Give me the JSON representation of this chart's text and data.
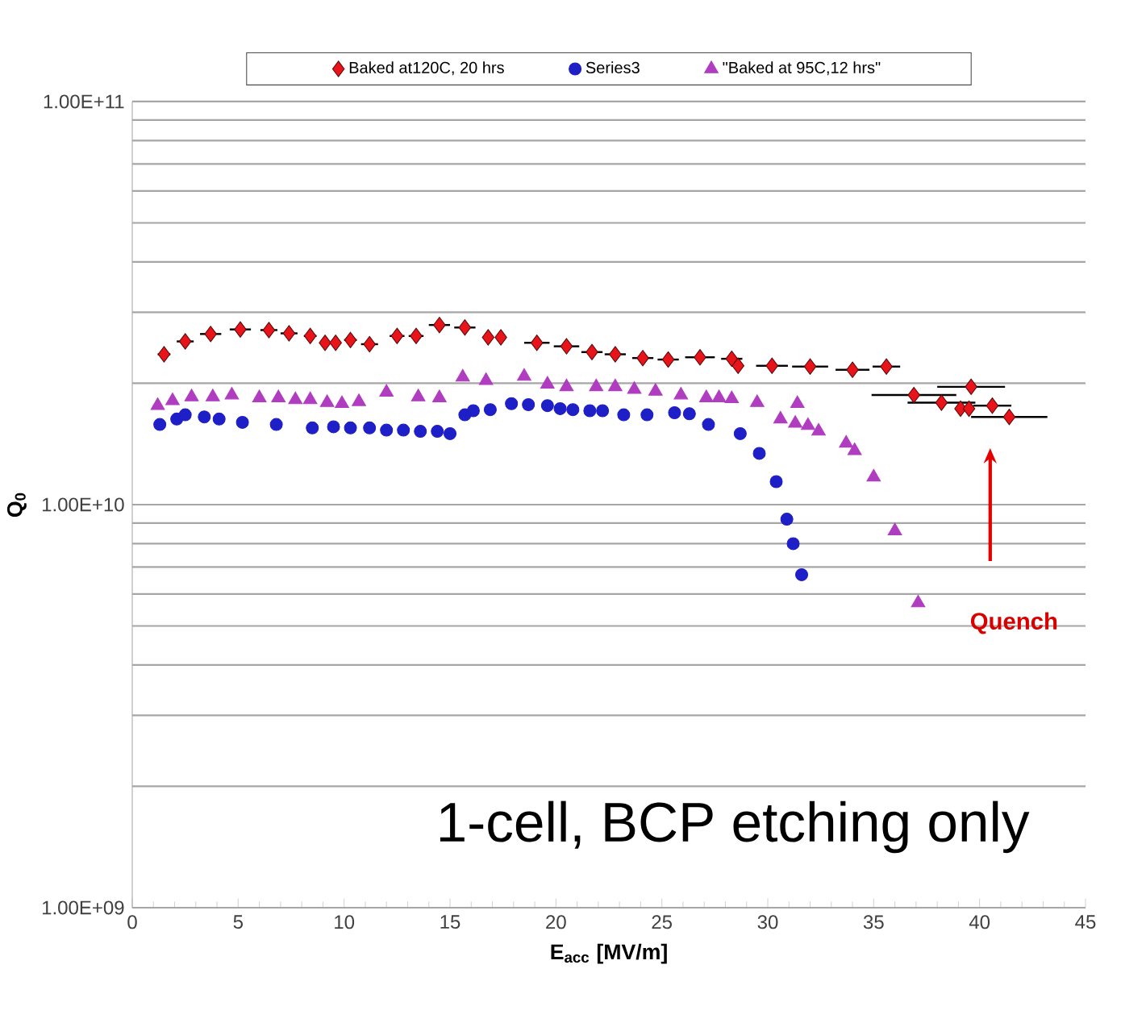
{
  "chart_data": {
    "type": "scatter",
    "xlabel": "E$_{acc}$ [MV/m]",
    "ylabel": "Q$_{0}$",
    "log": "y",
    "grid": "y",
    "legend": "top",
    "xlim": [
      0,
      45
    ],
    "xticks": [
      0,
      5,
      10,
      15,
      20,
      25,
      30,
      35,
      40,
      45
    ],
    "ylim": [
      1000000000.0,
      100000000000.0
    ],
    "yticks": [
      {
        "value": 1000000000.0,
        "label": "1.00E+09"
      },
      {
        "value": 10000000000.0,
        "label": "1.00E+10"
      },
      {
        "value": 100000000000.0,
        "label": "1.00E+11"
      }
    ],
    "annotations": [
      "1-cell, BCP etching only",
      "Quench"
    ],
    "series": [
      {
        "name": "Baked at120C, 20 hrs",
        "color": "#e8141a",
        "marker": "diamond",
        "x": [
          1.5,
          2.5,
          3.7,
          5.1,
          6.45,
          7.4,
          8.4,
          9.1,
          9.6,
          10.3,
          11.2,
          12.5,
          13.4,
          14.5,
          15.7,
          16.8,
          17.4,
          19.1,
          20.5,
          21.7,
          22.8,
          24.1,
          25.3,
          26.8,
          28.3,
          28.6,
          30.2,
          32.0,
          34.0,
          35.6,
          36.9,
          38.2,
          39.1,
          39.5,
          39.6,
          40.6,
          41.4
        ],
        "values": [
          23600000000.0,
          25400000000.0,
          26500000000.0,
          27200000000.0,
          27100000000.0,
          26600000000.0,
          26200000000.0,
          25200000000.0,
          25200000000.0,
          25600000000.0,
          25000000000.0,
          26200000000.0,
          26200000000.0,
          27900000000.0,
          27500000000.0,
          26000000000.0,
          26000000000.0,
          25200000000.0,
          24700000000.0,
          23900000000.0,
          23600000000.0,
          23100000000.0,
          22900000000.0,
          23200000000.0,
          23000000000.0,
          22100000000.0,
          22100000000.0,
          22000000000.0,
          21600000000.0,
          22000000000.0,
          18700000000.0,
          17900000000.0,
          17300000000.0,
          17300000000.0,
          19600000000.0,
          17600000000.0,
          16500000000.0
        ],
        "xerrors": [
          0.3,
          0.4,
          0.5,
          0.5,
          0.4,
          0.4,
          0.3,
          0.15,
          0.15,
          0.3,
          0.4,
          0.35,
          0.35,
          0.5,
          0.5,
          null,
          null,
          0.6,
          0.6,
          0.5,
          0.5,
          0.5,
          0.5,
          0.7,
          0.5,
          0.25,
          0.75,
          0.85,
          0.8,
          0.65,
          2.0,
          1.6,
          0.15,
          0.15,
          1.6,
          0.9,
          1.8
        ]
      },
      {
        "name": "Series3",
        "color": "#1f1fc8",
        "marker": "circle",
        "x": [
          1.3,
          2.1,
          2.5,
          3.4,
          4.1,
          5.2,
          6.8,
          8.5,
          9.5,
          10.3,
          11.2,
          12.0,
          12.8,
          13.6,
          14.4,
          15.0,
          15.7,
          16.1,
          16.9,
          17.9,
          18.7,
          19.6,
          20.2,
          20.8,
          21.6,
          22.2,
          23.2,
          24.3,
          25.6,
          26.3,
          27.2,
          28.7,
          29.6,
          30.4,
          30.9,
          31.2,
          31.6
        ],
        "values": [
          15800000000.0,
          16300000000.0,
          16700000000.0,
          16500000000.0,
          16300000000.0,
          16000000000.0,
          15800000000.0,
          15500000000.0,
          15600000000.0,
          15500000000.0,
          15500000000.0,
          15300000000.0,
          15300000000.0,
          15200000000.0,
          15200000000.0,
          15000000000.0,
          16700000000.0,
          17100000000.0,
          17200000000.0,
          17800000000.0,
          17700000000.0,
          17600000000.0,
          17300000000.0,
          17200000000.0,
          17100000000.0,
          17100000000.0,
          16700000000.0,
          16700000000.0,
          16900000000.0,
          16800000000.0,
          15800000000.0,
          15000000000.0,
          13400000000.0,
          11400000000.0,
          9200000000.0,
          8000000000.0,
          6700000000.0
        ]
      },
      {
        "name": "\"Baked at 95C,12 hrs\"",
        "color": "#b03cc0",
        "marker": "triangle",
        "x": [
          1.2,
          1.9,
          2.8,
          3.8,
          4.7,
          6.0,
          6.9,
          7.7,
          8.4,
          9.2,
          9.9,
          10.7,
          12.0,
          13.5,
          14.5,
          15.6,
          16.7,
          18.5,
          19.6,
          20.5,
          21.9,
          22.8,
          23.7,
          24.7,
          25.9,
          27.1,
          27.7,
          28.3,
          29.5,
          30.6,
          31.3,
          31.4,
          31.9,
          32.4,
          33.7,
          34.1,
          35.0,
          36.0,
          37.1
        ],
        "values": [
          17600000000.0,
          18100000000.0,
          18500000000.0,
          18500000000.0,
          18700000000.0,
          18400000000.0,
          18400000000.0,
          18200000000.0,
          18200000000.0,
          17900000000.0,
          17800000000.0,
          18000000000.0,
          19000000000.0,
          18500000000.0,
          18400000000.0,
          20700000000.0,
          20300000000.0,
          20800000000.0,
          19900000000.0,
          19600000000.0,
          19600000000.0,
          19600000000.0,
          19300000000.0,
          19100000000.0,
          18700000000.0,
          18400000000.0,
          18400000000.0,
          18300000000.0,
          17900000000.0,
          16300000000.0,
          15900000000.0,
          17800000000.0,
          15700000000.0,
          15200000000.0,
          14200000000.0,
          13600000000.0,
          11700000000.0,
          8600000000.0,
          5700000000.0
        ]
      }
    ]
  }
}
